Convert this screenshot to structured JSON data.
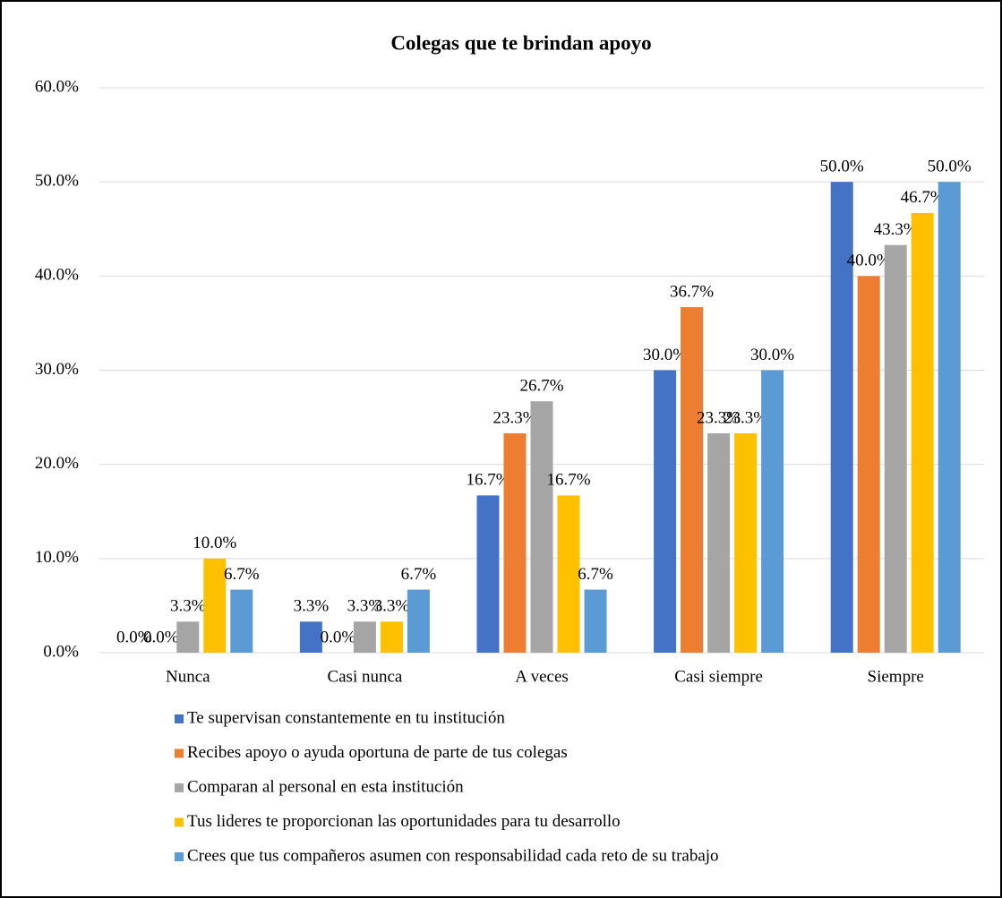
{
  "chart_data": {
    "type": "bar",
    "title": "Colegas que te brindan apoyo",
    "categories": [
      "Nunca",
      "Casi nunca",
      "A veces",
      "Casi siempre",
      "Siempre"
    ],
    "series": [
      {
        "name": "Te supervisan constantemente en tu institución",
        "color": "#4472c4",
        "values": [
          0,
          3.3,
          16.7,
          30,
          50
        ],
        "value_labels": [
          "0.0%",
          "3.3%",
          "16.7%",
          "30.0%",
          "50.0%"
        ]
      },
      {
        "name": "Recibes apoyo o ayuda oportuna de parte de tus colegas",
        "color": "#ed7d31",
        "values": [
          0,
          0,
          23.3,
          36.7,
          40
        ],
        "value_labels": [
          "0.0%",
          "0.0%",
          "23.3%",
          "36.7%",
          "40.0%"
        ]
      },
      {
        "name": "Comparan al personal en esta institución",
        "color": "#a5a5a5",
        "values": [
          3.3,
          3.3,
          26.7,
          23.3,
          43.3
        ],
        "value_labels": [
          "3.3%",
          "3.3%",
          "26.7%",
          "23.3%",
          "43.3%"
        ]
      },
      {
        "name": "Tus lideres te proporcionan las oportunidades para tu desarrollo",
        "color": "#ffc000",
        "values": [
          10,
          3.3,
          16.7,
          23.3,
          46.7
        ],
        "value_labels": [
          "10.0%",
          "3.3%",
          "16.7%",
          "23.3%",
          "46.7%"
        ]
      },
      {
        "name": "Crees que tus compañeros asumen con responsabilidad cada reto de su trabajo",
        "color": "#5b9bd5",
        "values": [
          6.7,
          6.7,
          6.7,
          30,
          50
        ],
        "value_labels": [
          "6.7%",
          "6.7%",
          "6.7%",
          "30.0%",
          "50.0%"
        ]
      }
    ],
    "ylim": [
      0,
      60
    ],
    "yticks": [
      {
        "value": 0,
        "label": "0.0%"
      },
      {
        "value": 10,
        "label": "10.0%"
      },
      {
        "value": 20,
        "label": "20.0%"
      },
      {
        "value": 30,
        "label": "30.0%"
      },
      {
        "value": 40,
        "label": "40.0%"
      },
      {
        "value": 50,
        "label": "50.0%"
      },
      {
        "value": 60,
        "label": "60.0%"
      }
    ],
    "grid": true,
    "legend": "bottom"
  }
}
